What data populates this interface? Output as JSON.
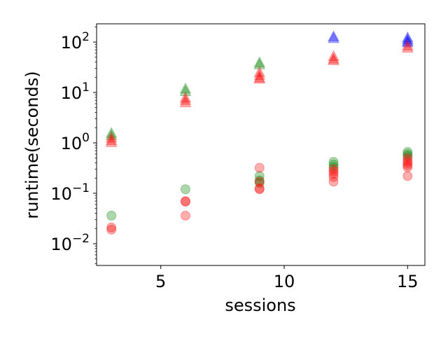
{
  "chart_data": {
    "type": "scatter",
    "xlabel": "sessions",
    "ylabel": "runtime(seconds)",
    "xlim": [
      2.4,
      15.7
    ],
    "ylim": [
      0.0037,
      230
    ],
    "yscale": "log",
    "x_ticks": [
      5,
      10,
      15
    ],
    "x_tick_labels": [
      "5",
      "10",
      "15"
    ],
    "y_ticks": [
      0.01,
      0.1,
      1,
      10,
      100
    ],
    "y_tick_labels": [
      [
        "10",
        "−2"
      ],
      [
        "10",
        "−1"
      ],
      [
        "10",
        "0"
      ],
      [
        "10",
        "1"
      ],
      [
        "10",
        "2"
      ]
    ],
    "grid": false,
    "series": [
      {
        "marker": "triangle",
        "color": "#008000",
        "points": [
          [
            3,
            1.55
          ],
          [
            3,
            1.4
          ],
          [
            6,
            11.8
          ],
          [
            6,
            10.5
          ],
          [
            9,
            39.0
          ],
          [
            9,
            35.5
          ]
        ]
      },
      {
        "marker": "triangle",
        "color": "#0000ff",
        "points": [
          [
            12,
            128
          ],
          [
            12,
            118
          ],
          [
            15,
            122
          ],
          [
            15,
            112
          ],
          [
            15,
            103
          ],
          [
            15,
            97
          ]
        ]
      },
      {
        "marker": "triangle",
        "color": "#ff0000",
        "points": [
          [
            3,
            1.25
          ],
          [
            3,
            1.12
          ],
          [
            3,
            1.02
          ],
          [
            6,
            7.8
          ],
          [
            6,
            7.0
          ],
          [
            6,
            6.3
          ],
          [
            9,
            25.0
          ],
          [
            9,
            22.0
          ],
          [
            9,
            19.5
          ],
          [
            9,
            18.5
          ],
          [
            12,
            52.0
          ],
          [
            12,
            46.0
          ],
          [
            12,
            43.0
          ],
          [
            15,
            84.0
          ],
          [
            15,
            76.0
          ]
        ]
      },
      {
        "marker": "circle",
        "color": "#008000",
        "points": [
          [
            3,
            0.036
          ],
          [
            6,
            0.12
          ],
          [
            9,
            0.22
          ],
          [
            9,
            0.18
          ],
          [
            9,
            0.16
          ],
          [
            12,
            0.42
          ],
          [
            12,
            0.37
          ],
          [
            12,
            0.33
          ],
          [
            15,
            0.66
          ],
          [
            15,
            0.6
          ],
          [
            15,
            0.55
          ]
        ]
      },
      {
        "marker": "circle",
        "color": "#ff0000",
        "points": [
          [
            3,
            0.021
          ],
          [
            3,
            0.019
          ],
          [
            6,
            0.07
          ],
          [
            6,
            0.068
          ],
          [
            6,
            0.036
          ],
          [
            9,
            0.32
          ],
          [
            9,
            0.17
          ],
          [
            9,
            0.125
          ],
          [
            9,
            0.12
          ],
          [
            12,
            0.3
          ],
          [
            12,
            0.27
          ],
          [
            12,
            0.24
          ],
          [
            12,
            0.21
          ],
          [
            12,
            0.17
          ],
          [
            15,
            0.5
          ],
          [
            15,
            0.44
          ],
          [
            15,
            0.4
          ],
          [
            15,
            0.36
          ],
          [
            15,
            0.33
          ],
          [
            15,
            0.22
          ]
        ]
      }
    ]
  }
}
